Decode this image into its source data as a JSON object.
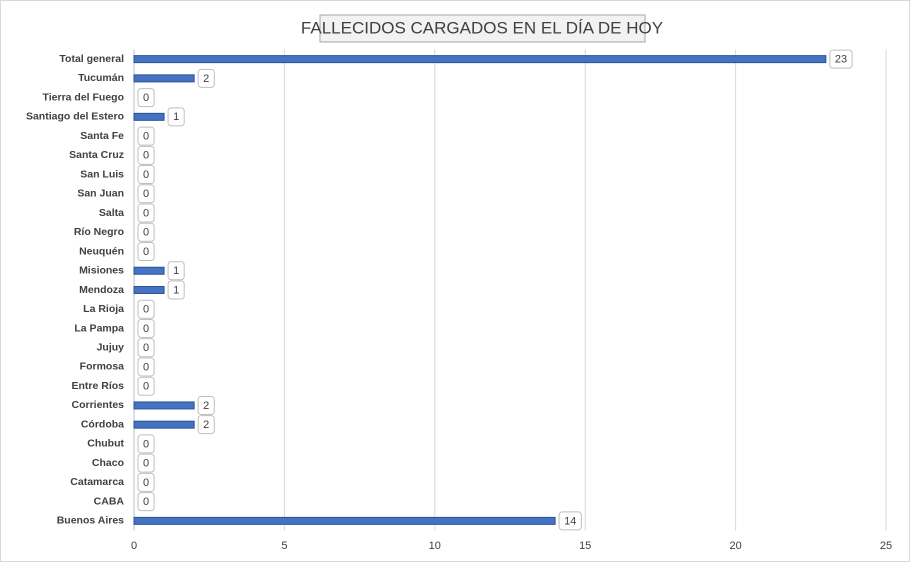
{
  "chart_data": {
    "type": "bar",
    "orientation": "horizontal",
    "title": "FALLECIDOS CARGADOS EN EL DÍA DE HOY",
    "categories": [
      "Total general",
      "Tucumán",
      "Tierra del Fuego",
      "Santiago del Estero",
      "Santa Fe",
      "Santa Cruz",
      "San Luis",
      "San Juan",
      "Salta",
      "Río Negro",
      "Neuquén",
      "Misiones",
      "Mendoza",
      "La Rioja",
      "La Pampa",
      "Jujuy",
      "Formosa",
      "Entre Ríos",
      "Corrientes",
      "Córdoba",
      "Chubut",
      "Chaco",
      "Catamarca",
      "CABA",
      "Buenos Aires"
    ],
    "values": [
      23,
      2,
      0,
      1,
      0,
      0,
      0,
      0,
      0,
      0,
      0,
      1,
      1,
      0,
      0,
      0,
      0,
      0,
      2,
      2,
      0,
      0,
      0,
      0,
      14
    ],
    "color": "#4472c4",
    "xlim": [
      0,
      25
    ],
    "xticks": [
      0,
      5,
      10,
      15,
      20,
      25
    ],
    "grid": true
  }
}
